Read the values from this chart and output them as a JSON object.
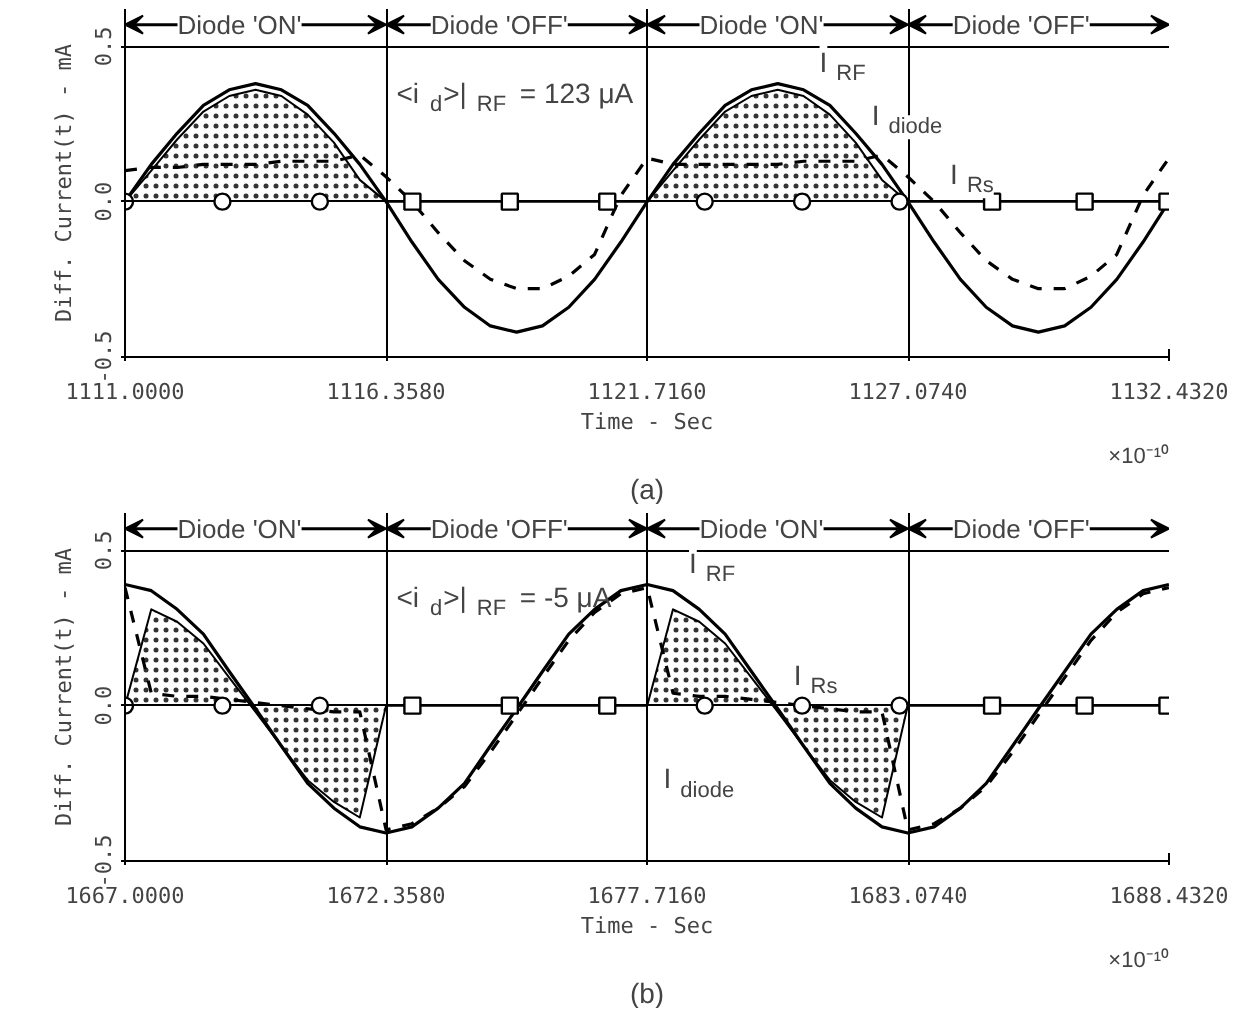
{
  "chart_data": [
    {
      "type": "line",
      "title": "(a)",
      "xlabel": "Time - Sec",
      "ylabel": "Diff. Current(t) - mA",
      "x": [
        1111.0,
        1111.54,
        1112.07,
        1112.61,
        1113.14,
        1113.68,
        1114.21,
        1114.75,
        1115.29,
        1115.82,
        1116.36,
        1116.89,
        1117.43,
        1117.97,
        1118.5,
        1119.04,
        1119.57,
        1120.11,
        1120.64,
        1121.18,
        1121.72,
        1122.25,
        1122.79,
        1123.32,
        1123.86,
        1124.4,
        1124.93,
        1125.47,
        1126.0,
        1126.54,
        1127.07,
        1127.61,
        1128.15,
        1128.68,
        1129.22,
        1129.75,
        1130.29,
        1130.83,
        1131.36,
        1131.9,
        1132.43
      ],
      "series": [
        {
          "color": "#000000",
          "line_style": "solid",
          "values": [
            0,
            0.12,
            0.22,
            0.31,
            0.36,
            0.38,
            0.36,
            0.31,
            0.22,
            0.12,
            0,
            -0.13,
            -0.25,
            -0.34,
            -0.4,
            -0.42,
            -0.4,
            -0.34,
            -0.25,
            -0.13,
            0,
            0.12,
            0.22,
            0.31,
            0.36,
            0.38,
            0.36,
            0.31,
            0.22,
            0.12,
            0,
            -0.13,
            -0.25,
            -0.34,
            -0.4,
            -0.42,
            -0.4,
            -0.34,
            -0.25,
            -0.13,
            0
          ]
        },
        {
          "color": "#000000",
          "line_style": "dashed",
          "values": [
            0.1,
            0.11,
            0.11,
            0.12,
            0.12,
            0.12,
            0.13,
            0.13,
            0.13,
            0.15,
            0.08,
            0.0,
            -0.1,
            -0.19,
            -0.25,
            -0.28,
            -0.28,
            -0.24,
            -0.17,
            0.02,
            0.14,
            0.12,
            0.12,
            0.12,
            0.12,
            0.12,
            0.13,
            0.13,
            0.13,
            0.15,
            0.08,
            0.0,
            -0.1,
            -0.19,
            -0.25,
            -0.28,
            -0.28,
            -0.24,
            -0.17,
            0.02,
            0.14
          ]
        },
        {
          "type": "area",
          "color": "#000000",
          "values": [
            0,
            0.1,
            0.2,
            0.29,
            0.34,
            0.36,
            0.34,
            0.28,
            0.19,
            0.07,
            0,
            0,
            0,
            0,
            0,
            0,
            0,
            0,
            0,
            0,
            0,
            0.1,
            0.2,
            0.29,
            0.34,
            0.36,
            0.34,
            0.28,
            0.19,
            0.07,
            0,
            0,
            0,
            0,
            0,
            0,
            0,
            0,
            0,
            0,
            0
          ]
        },
        {
          "type": "scatter",
          "color": "#000000",
          "marker": "circle",
          "x": [
            1111.0,
            1113.0,
            1115.0,
            1122.9,
            1124.9,
            1126.9
          ],
          "values": [
            0,
            0,
            0,
            0,
            0,
            0
          ]
        },
        {
          "type": "scatter",
          "color": "#000000",
          "marker": "square",
          "x": [
            1116.9,
            1118.9,
            1120.9,
            1128.8,
            1130.7,
            1132.4
          ],
          "values": [
            0,
            0,
            0,
            0,
            0,
            0
          ]
        }
      ],
      "xlim": [
        1111.0,
        1132.432
      ],
      "ylim": [
        -0.5,
        0.62
      ],
      "xticks": [
        {
          "value": 1111.0,
          "label": "1111.0000"
        },
        {
          "value": 1116.358,
          "label": "1116.3580"
        },
        {
          "value": 1121.716,
          "label": "1121.7160"
        },
        {
          "value": 1127.074,
          "label": "1127.0740"
        },
        {
          "value": 1132.432,
          "label": "1132.4320"
        }
      ],
      "yticks": [
        {
          "value": -0.5,
          "label": "-0.5"
        },
        {
          "value": 0,
          "label": "0.0"
        },
        {
          "value": 0.5,
          "label": "0.5"
        }
      ],
      "grid": true,
      "annotations": [
        "Diode 'ON'",
        "Diode 'OFF'",
        "Diode 'ON'",
        "Diode 'OFF'",
        "<i$_{d}$>|$_{RF}$ = 123 μA",
        "×10⁻¹⁰",
        {
          "text": "I$_{RF}$",
          "x": 1124.93,
          "y": 0.36
        },
        {
          "text": "I$_{diode}$",
          "x": 1126.0,
          "y": 0.19
        },
        {
          "text": "I$_{Rs}$",
          "x": 1127.61,
          "y": 0.0
        }
      ]
    },
    {
      "type": "line",
      "title": "(b)",
      "xlabel": "Time - Sec",
      "ylabel": "Diff. Current(t) - mA",
      "x": [
        1667.0,
        1667.54,
        1668.07,
        1668.61,
        1669.14,
        1669.68,
        1670.21,
        1670.75,
        1671.29,
        1671.82,
        1672.36,
        1672.89,
        1673.43,
        1673.97,
        1674.5,
        1675.04,
        1675.57,
        1676.11,
        1676.64,
        1677.18,
        1677.72,
        1678.25,
        1678.79,
        1679.32,
        1679.86,
        1680.4,
        1680.93,
        1681.47,
        1682.0,
        1682.54,
        1683.07,
        1683.61,
        1684.15,
        1684.68,
        1685.22,
        1685.75,
        1686.29,
        1686.83,
        1687.36,
        1687.9,
        1688.43
      ],
      "series": [
        {
          "color": "#000000",
          "line_style": "solid",
          "values": [
            0.39,
            0.37,
            0.31,
            0.23,
            0.11,
            -0.01,
            -0.13,
            -0.25,
            -0.33,
            -0.39,
            -0.41,
            -0.39,
            -0.33,
            -0.25,
            -0.13,
            -0.01,
            0.11,
            0.23,
            0.31,
            0.37,
            0.39,
            0.37,
            0.31,
            0.23,
            0.11,
            -0.01,
            -0.13,
            -0.25,
            -0.33,
            -0.39,
            -0.41,
            -0.39,
            -0.33,
            -0.25,
            -0.13,
            -0.01,
            0.11,
            0.23,
            0.31,
            0.37,
            0.39
          ]
        },
        {
          "color": "#000000",
          "line_style": "dashed",
          "values": [
            0.38,
            0.04,
            0.03,
            0.03,
            0.02,
            0.01,
            0.0,
            -0.01,
            -0.02,
            -0.02,
            -0.4,
            -0.38,
            -0.33,
            -0.26,
            -0.15,
            -0.03,
            0.09,
            0.21,
            0.3,
            0.36,
            0.38,
            0.04,
            0.03,
            0.03,
            0.02,
            0.01,
            0.0,
            -0.01,
            -0.02,
            -0.02,
            -0.4,
            -0.38,
            -0.33,
            -0.26,
            -0.15,
            -0.03,
            0.09,
            0.21,
            0.3,
            0.36,
            0.38
          ]
        },
        {
          "type": "area",
          "color": "#000000",
          "values": [
            0,
            0.31,
            0.27,
            0.2,
            0.09,
            -0.02,
            -0.13,
            -0.24,
            -0.31,
            -0.36,
            0,
            0,
            0,
            0,
            0,
            0,
            0,
            0,
            0,
            0,
            0,
            0.31,
            0.27,
            0.2,
            0.09,
            -0.02,
            -0.13,
            -0.24,
            -0.31,
            -0.36,
            0,
            0,
            0,
            0,
            0,
            0,
            0,
            0,
            0,
            0,
            0
          ]
        },
        {
          "type": "scatter",
          "color": "#000000",
          "marker": "circle",
          "x": [
            1667.0,
            1669.0,
            1671.0,
            1678.9,
            1680.9,
            1682.9
          ],
          "values": [
            0,
            0,
            0,
            0,
            0,
            0
          ]
        },
        {
          "type": "scatter",
          "color": "#000000",
          "marker": "square",
          "x": [
            1672.9,
            1674.9,
            1676.9,
            1684.8,
            1686.7,
            1688.4
          ],
          "values": [
            0,
            0,
            0,
            0,
            0,
            0
          ]
        }
      ],
      "xlim": [
        1667.0,
        1688.432
      ],
      "ylim": [
        -0.5,
        0.62
      ],
      "xticks": [
        {
          "value": 1667.0,
          "label": "1667.0000"
        },
        {
          "value": 1672.358,
          "label": "1672.3580"
        },
        {
          "value": 1677.716,
          "label": "1677.7160"
        },
        {
          "value": 1683.074,
          "label": "1683.0740"
        },
        {
          "value": 1688.432,
          "label": "1688.4320"
        }
      ],
      "yticks": [
        {
          "value": -0.5,
          "label": "-0.5"
        },
        {
          "value": 0,
          "label": "0.0"
        },
        {
          "value": 0.5,
          "label": "0.5"
        }
      ],
      "grid": true,
      "annotations": [
        "Diode 'ON'",
        "Diode 'OFF'",
        "Diode 'ON'",
        "Diode 'OFF'",
        "<i$_{d}$>|$_{RF}$ = -5 μA",
        "×10⁻¹⁰",
        {
          "text": "I$_{RF}$",
          "x": 1678.25,
          "y": 0.37
        },
        {
          "text": "I$_{diode}$",
          "x": 1680.93,
          "y": -0.13
        },
        {
          "text": "I$_{Rs}$",
          "x": 1680.4,
          "y": 0.01
        }
      ]
    }
  ]
}
